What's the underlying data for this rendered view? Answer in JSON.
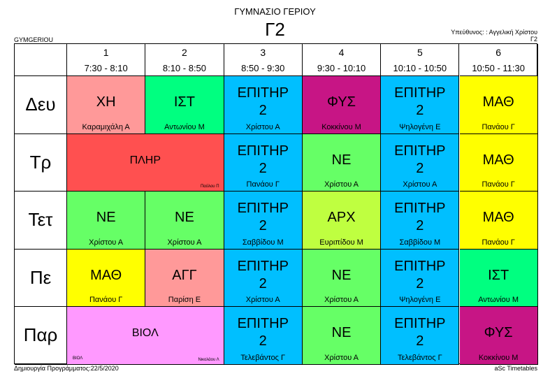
{
  "header": {
    "school": "ΓΥΜΝΑΣΙΟ ΓΕΡΙΟΥ",
    "class_name": "Γ2",
    "short_code": "GYMGERIOU",
    "responsible": "Υπεύθυνος: : Αγγελική Χρίστου",
    "responsible_class": "Γ2"
  },
  "periods": [
    {
      "num": "1",
      "time": "7:30 - 8:10"
    },
    {
      "num": "2",
      "time": "8:10 - 8:50"
    },
    {
      "num": "3",
      "time": "8:50 - 9:30"
    },
    {
      "num": "4",
      "time": "9:30 - 10:10"
    },
    {
      "num": "5",
      "time": "10:10 - 10:50"
    },
    {
      "num": "6",
      "time": "10:50 - 11:30"
    }
  ],
  "days": [
    {
      "label": "Δευ",
      "lessons": [
        {
          "subject": "ΧΗ",
          "teacher": "Καραμιχάλη Α",
          "color": "#FF9999"
        },
        {
          "subject": "ΙΣΤ",
          "teacher": "Αντωνίου Μ",
          "color": "#00FF80"
        },
        {
          "subject": "ΕΠΙΤΗΡ 2",
          "teacher": "Χρίστου Α",
          "color": "#00BFFF"
        },
        {
          "subject": "ΦΥΣ",
          "teacher": "Κοκκίνου Μ",
          "color": "#C71585"
        },
        {
          "subject": "ΕΠΙΤΗΡ 2",
          "teacher": "Ψηλογένη Ε",
          "color": "#00BFFF"
        },
        {
          "subject": "ΜΑΘ",
          "teacher": "Πανάου Γ",
          "color": "#FFFF00"
        }
      ]
    },
    {
      "label": "Τρ",
      "lessons": [
        {
          "subject": "ΠΛΗΡ",
          "teacher": "Παύλου Π",
          "color": "#FF5050",
          "span": 2
        },
        {
          "subject": "ΕΠΙΤΗΡ 2",
          "teacher": "Πανάου Γ",
          "color": "#00BFFF"
        },
        {
          "subject": "ΝΕ",
          "teacher": "Χρίστου Α",
          "color": "#66FF66"
        },
        {
          "subject": "ΕΠΙΤΗΡ 2",
          "teacher": "Χρίστου Α",
          "color": "#00BFFF"
        },
        {
          "subject": "ΜΑΘ",
          "teacher": "Πανάου Γ",
          "color": "#FFFF00"
        }
      ]
    },
    {
      "label": "Τετ",
      "lessons": [
        {
          "subject": "ΝΕ",
          "teacher": "Χρίστου Α",
          "color": "#66FF66"
        },
        {
          "subject": "ΝΕ",
          "teacher": "Χρίστου Α",
          "color": "#66FF66"
        },
        {
          "subject": "ΕΠΙΤΗΡ 2",
          "teacher": "Σαββίδου Μ",
          "color": "#00BFFF"
        },
        {
          "subject": "ΑΡΧ",
          "teacher": "Ευριπίδου Μ",
          "color": "#BFFF40"
        },
        {
          "subject": "ΕΠΙΤΗΡ 2",
          "teacher": "Σαββίδου Μ",
          "color": "#00BFFF"
        },
        {
          "subject": "ΜΑΘ",
          "teacher": "Πανάου Γ",
          "color": "#FFFF00"
        }
      ]
    },
    {
      "label": "Πε",
      "lessons": [
        {
          "subject": "ΜΑΘ",
          "teacher": "Πανάου Γ",
          "color": "#FFFF00"
        },
        {
          "subject": "ΑΓΓ",
          "teacher": "Παρίση Ε",
          "color": "#FF9999"
        },
        {
          "subject": "ΕΠΙΤΗΡ 2",
          "teacher": "Χρίστου Α",
          "color": "#00BFFF"
        },
        {
          "subject": "ΝΕ",
          "teacher": "Χρίστου Α",
          "color": "#66FF66"
        },
        {
          "subject": "ΕΠΙΤΗΡ 2",
          "teacher": "Ψηλογένη Ε",
          "color": "#00BFFF"
        },
        {
          "subject": "ΙΣΤ",
          "teacher": "Αντωνίου Μ",
          "color": "#00FF80"
        }
      ]
    },
    {
      "label": "Παρ",
      "lessons": [
        {
          "subject": "ΒΙΟΛ",
          "teacher": "Νικολάου Λ",
          "sub_small": "ΒΙΟΛ",
          "color": "#FF99FF",
          "span": 2
        },
        {
          "subject": "ΕΠΙΤΗΡ 2",
          "teacher": "Τελεβάντος Γ",
          "color": "#00BFFF"
        },
        {
          "subject": "ΝΕ",
          "teacher": "Χρίστου Α",
          "color": "#66FF66"
        },
        {
          "subject": "ΕΠΙΤΗΡ 2",
          "teacher": "Τελεβάντος Γ",
          "color": "#00BFFF"
        },
        {
          "subject": "ΦΥΣ",
          "teacher": "Κοκκίνου Μ",
          "color": "#C71585"
        }
      ]
    }
  ],
  "footer": {
    "created": "Δημιουργία Προγράμματος:22/5/2020",
    "app": "aSc Timetables"
  }
}
